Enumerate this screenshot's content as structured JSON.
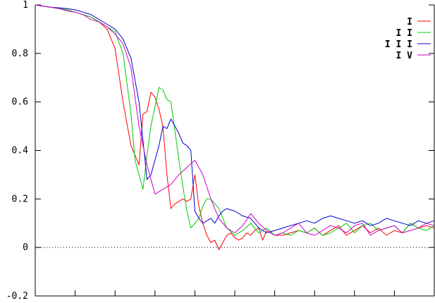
{
  "chart_data": {
    "type": "line",
    "title": "",
    "xlabel": "",
    "ylabel": "",
    "xlim": [
      0,
      100
    ],
    "ylim": [
      -0.2,
      1
    ],
    "x_ticks": [
      0,
      10,
      20,
      30,
      40,
      50,
      60,
      70,
      80,
      90,
      100
    ],
    "y_ticks": [
      -0.2,
      0,
      0.2,
      0.4,
      0.6,
      0.8,
      1
    ],
    "y_tick_labels": [
      "-0.2",
      "0",
      "0.2",
      "0.4",
      "0.6",
      "0.8",
      "1"
    ],
    "zero_line": true,
    "grid": false,
    "legend_position": "top-right",
    "series": [
      {
        "name": "I",
        "color": "#ff0000",
        "x": [
          0,
          2,
          4,
          6,
          8,
          10,
          12,
          14,
          16,
          18,
          20,
          22,
          24,
          26,
          27,
          28,
          29,
          30,
          31,
          32,
          33,
          34,
          35,
          36,
          37,
          38,
          39,
          40,
          41,
          42,
          43,
          44,
          45,
          46,
          47,
          48,
          49,
          50,
          51,
          52,
          53,
          54,
          55,
          56,
          57,
          58,
          59,
          60,
          62,
          64,
          66,
          68,
          70,
          72,
          74,
          76,
          78,
          80,
          82,
          84,
          86,
          88,
          90,
          92,
          94,
          96,
          98,
          100
        ],
        "y": [
          1,
          0.995,
          0.99,
          0.985,
          0.98,
          0.97,
          0.96,
          0.95,
          0.93,
          0.9,
          0.82,
          0.6,
          0.42,
          0.34,
          0.55,
          0.56,
          0.64,
          0.62,
          0.57,
          0.5,
          0.3,
          0.16,
          0.18,
          0.19,
          0.2,
          0.19,
          0.2,
          0.3,
          0.17,
          0.1,
          0.05,
          0.02,
          0.03,
          -0.01,
          0.02,
          0.05,
          0.06,
          0.04,
          0.03,
          0.04,
          0.06,
          0.05,
          0.07,
          0.08,
          0.03,
          0.07,
          0.06,
          0.05,
          0.05,
          0.06,
          0.07,
          0.06,
          0.08,
          0.05,
          0.07,
          0.09,
          0.05,
          0.07,
          0.09,
          0.06,
          0.08,
          0.05,
          0.07,
          0.06,
          0.1,
          0.08,
          0.09,
          0.08
        ]
      },
      {
        "name": "II",
        "color": "#00cc00",
        "x": [
          0,
          2,
          4,
          6,
          8,
          10,
          12,
          14,
          16,
          18,
          20,
          22,
          24,
          25,
          26,
          27,
          28,
          29,
          30,
          31,
          32,
          33,
          34,
          35,
          36,
          37,
          38,
          39,
          40,
          41,
          42,
          43,
          44,
          45,
          46,
          48,
          50,
          52,
          54,
          56,
          58,
          60,
          62,
          64,
          66,
          68,
          70,
          72,
          74,
          76,
          78,
          80,
          82,
          84,
          86,
          88,
          90,
          92,
          94,
          96,
          98,
          100
        ],
        "y": [
          1,
          0.995,
          0.99,
          0.985,
          0.98,
          0.97,
          0.96,
          0.95,
          0.93,
          0.91,
          0.89,
          0.8,
          0.55,
          0.36,
          0.3,
          0.24,
          0.38,
          0.5,
          0.58,
          0.66,
          0.65,
          0.61,
          0.6,
          0.48,
          0.36,
          0.25,
          0.15,
          0.08,
          0.1,
          0.12,
          0.17,
          0.2,
          0.2,
          0.18,
          0.16,
          0.08,
          0.05,
          0.07,
          0.1,
          0.06,
          0.08,
          0.05,
          0.06,
          0.05,
          0.07,
          0.06,
          0.08,
          0.05,
          0.06,
          0.08,
          0.1,
          0.06,
          0.09,
          0.1,
          0.07,
          0.08,
          0.09,
          0.06,
          0.1,
          0.08,
          0.07,
          0.09
        ]
      },
      {
        "name": "III",
        "color": "#0000cc",
        "x": [
          0,
          2,
          4,
          6,
          8,
          10,
          12,
          14,
          16,
          18,
          20,
          22,
          24,
          26,
          28,
          29,
          30,
          31,
          32,
          33,
          34,
          35,
          36,
          37,
          38,
          39,
          40,
          41,
          42,
          43,
          44,
          45,
          46,
          47,
          48,
          50,
          52,
          54,
          56,
          58,
          60,
          62,
          64,
          66,
          68,
          70,
          72,
          74,
          76,
          78,
          80,
          82,
          84,
          86,
          88,
          90,
          92,
          94,
          96,
          98,
          100
        ],
        "y": [
          1,
          0.995,
          0.99,
          0.988,
          0.985,
          0.98,
          0.97,
          0.96,
          0.94,
          0.92,
          0.9,
          0.86,
          0.78,
          0.6,
          0.28,
          0.3,
          0.36,
          0.42,
          0.5,
          0.49,
          0.53,
          0.5,
          0.47,
          0.43,
          0.42,
          0.4,
          0.15,
          0.12,
          0.1,
          0.11,
          0.12,
          0.1,
          0.13,
          0.15,
          0.16,
          0.15,
          0.13,
          0.12,
          0.08,
          0.06,
          0.07,
          0.08,
          0.09,
          0.1,
          0.11,
          0.1,
          0.12,
          0.13,
          0.12,
          0.11,
          0.1,
          0.11,
          0.09,
          0.1,
          0.12,
          0.11,
          0.1,
          0.09,
          0.11,
          0.1,
          0.11
        ]
      },
      {
        "name": "IV",
        "color": "#cc00cc",
        "x": [
          0,
          2,
          4,
          6,
          8,
          10,
          12,
          14,
          16,
          18,
          20,
          22,
          24,
          26,
          28,
          30,
          32,
          34,
          36,
          38,
          40,
          42,
          44,
          46,
          48,
          50,
          52,
          54,
          56,
          58,
          60,
          62,
          64,
          66,
          68,
          70,
          72,
          74,
          76,
          78,
          80,
          82,
          84,
          86,
          88,
          90,
          92,
          94,
          96,
          98,
          100
        ],
        "y": [
          1,
          0.995,
          0.99,
          0.985,
          0.975,
          0.97,
          0.96,
          0.94,
          0.93,
          0.91,
          0.88,
          0.84,
          0.74,
          0.5,
          0.34,
          0.22,
          0.24,
          0.26,
          0.3,
          0.33,
          0.36,
          0.3,
          0.2,
          0.12,
          0.08,
          0.06,
          0.09,
          0.14,
          0.1,
          0.07,
          0.05,
          0.06,
          0.08,
          0.1,
          0.06,
          0.05,
          0.07,
          0.09,
          0.08,
          0.06,
          0.09,
          0.1,
          0.05,
          0.07,
          0.08,
          0.09,
          0.06,
          0.07,
          0.08,
          0.1,
          0.09
        ]
      }
    ]
  }
}
